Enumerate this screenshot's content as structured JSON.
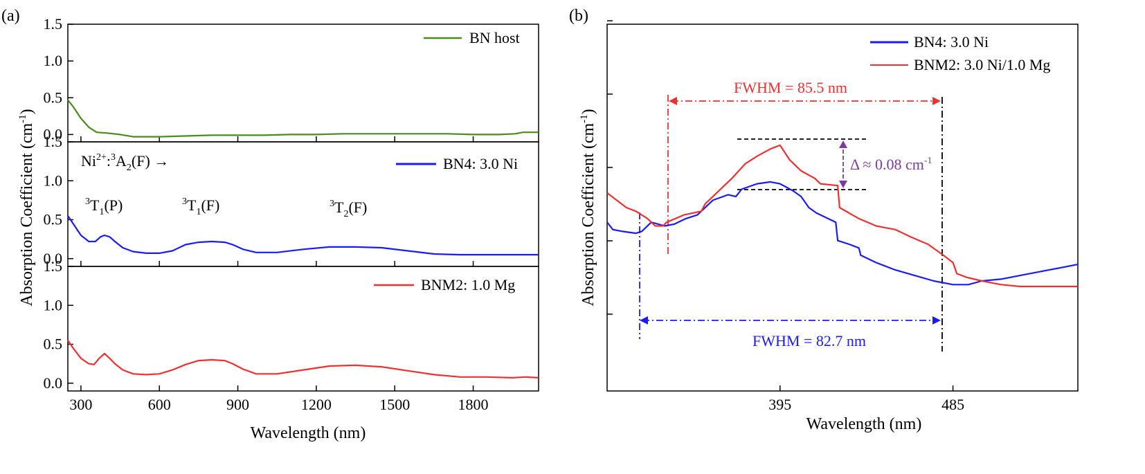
{
  "panels": {
    "a_label": "(a)",
    "b_label": "(b)"
  },
  "chart_data": [
    {
      "type": "line",
      "panel": "(a) top",
      "xlabel": "",
      "ylabel": "",
      "xlim": [
        250,
        2050
      ],
      "ylim": [
        -0.1,
        1.5
      ],
      "yticks": [
        0.0,
        0.5,
        1.0,
        1.5
      ],
      "ytick_labels": [
        "0.0",
        "0.5",
        "1.0",
        "1.5"
      ],
      "legend_position": "top-right",
      "series": [
        {
          "name": "BN host",
          "color": "#4a8c1c",
          "points": [
            [
              250,
              0.47
            ],
            [
              270,
              0.38
            ],
            [
              300,
              0.22
            ],
            [
              330,
              0.1
            ],
            [
              360,
              0.03
            ],
            [
              400,
              0.02
            ],
            [
              450,
              0.0
            ],
            [
              500,
              -0.03
            ],
            [
              550,
              -0.03
            ],
            [
              600,
              -0.03
            ],
            [
              700,
              -0.02
            ],
            [
              800,
              -0.01
            ],
            [
              900,
              -0.01
            ],
            [
              1000,
              -0.01
            ],
            [
              1100,
              0.0
            ],
            [
              1200,
              0.0
            ],
            [
              1300,
              0.01
            ],
            [
              1400,
              0.01
            ],
            [
              1500,
              0.01
            ],
            [
              1600,
              0.01
            ],
            [
              1700,
              0.01
            ],
            [
              1800,
              0.0
            ],
            [
              1900,
              0.0
            ],
            [
              1960,
              0.01
            ],
            [
              1990,
              0.03
            ],
            [
              2050,
              0.03
            ]
          ]
        }
      ]
    },
    {
      "type": "line",
      "panel": "(a) middle",
      "xlabel": "",
      "ylabel": "",
      "xlim": [
        250,
        2050
      ],
      "ylim": [
        -0.1,
        1.5
      ],
      "yticks": [
        0.0,
        0.5,
        1.0,
        1.5
      ],
      "ytick_labels": [
        "0.0",
        "0.5",
        "1.0",
        "1.5"
      ],
      "legend_position": "top-right",
      "series": [
        {
          "name": "BN4: 3.0 Ni",
          "color": "#1a1aff",
          "points": [
            [
              250,
              0.55
            ],
            [
              270,
              0.45
            ],
            [
              300,
              0.3
            ],
            [
              330,
              0.22
            ],
            [
              355,
              0.22
            ],
            [
              375,
              0.28
            ],
            [
              390,
              0.3
            ],
            [
              410,
              0.28
            ],
            [
              430,
              0.22
            ],
            [
              460,
              0.14
            ],
            [
              500,
              0.09
            ],
            [
              550,
              0.07
            ],
            [
              600,
              0.07
            ],
            [
              650,
              0.1
            ],
            [
              700,
              0.18
            ],
            [
              750,
              0.21
            ],
            [
              800,
              0.22
            ],
            [
              850,
              0.21
            ],
            [
              880,
              0.18
            ],
            [
              920,
              0.12
            ],
            [
              970,
              0.08
            ],
            [
              1050,
              0.08
            ],
            [
              1150,
              0.12
            ],
            [
              1250,
              0.15
            ],
            [
              1350,
              0.15
            ],
            [
              1450,
              0.14
            ],
            [
              1550,
              0.1
            ],
            [
              1650,
              0.06
            ],
            [
              1750,
              0.05
            ],
            [
              1850,
              0.05
            ],
            [
              1950,
              0.05
            ],
            [
              2050,
              0.05
            ]
          ]
        }
      ],
      "annotations": [
        {
          "text": "Ni2+:3A2(F) →",
          "x": 290,
          "y": 1.25
        },
        {
          "text": "3T1(P)",
          "x": 325,
          "y": 0.63
        },
        {
          "text": "3T1(F)",
          "x": 680,
          "y": 0.63
        },
        {
          "text": "3T2(F)",
          "x": 1250,
          "y": 0.6
        }
      ]
    },
    {
      "type": "line",
      "panel": "(a) bottom",
      "xlabel": "Wavelength (nm)",
      "ylabel": "Absorption Coefficient (cm-1)",
      "xlim": [
        250,
        2050
      ],
      "ylim": [
        -0.1,
        1.5
      ],
      "xticks": [
        300,
        600,
        900,
        1200,
        1500,
        1800
      ],
      "xtick_labels": [
        "300",
        "600",
        "900",
        "1200",
        "1500",
        "1800"
      ],
      "yticks": [
        0.0,
        0.5,
        1.0,
        1.5
      ],
      "ytick_labels": [
        "0.0",
        "0.5",
        "1.0",
        "1.5"
      ],
      "legend_position": "top-right",
      "series": [
        {
          "name": "BNM2: 1.0 Mg",
          "color": "#f03030",
          "points": [
            [
              250,
              0.55
            ],
            [
              270,
              0.45
            ],
            [
              300,
              0.32
            ],
            [
              330,
              0.25
            ],
            [
              350,
              0.24
            ],
            [
              370,
              0.32
            ],
            [
              390,
              0.38
            ],
            [
              410,
              0.32
            ],
            [
              430,
              0.25
            ],
            [
              460,
              0.17
            ],
            [
              500,
              0.12
            ],
            [
              550,
              0.11
            ],
            [
              600,
              0.12
            ],
            [
              650,
              0.17
            ],
            [
              700,
              0.24
            ],
            [
              750,
              0.29
            ],
            [
              800,
              0.3
            ],
            [
              850,
              0.29
            ],
            [
              880,
              0.25
            ],
            [
              920,
              0.18
            ],
            [
              970,
              0.12
            ],
            [
              1050,
              0.12
            ],
            [
              1150,
              0.17
            ],
            [
              1250,
              0.22
            ],
            [
              1350,
              0.23
            ],
            [
              1450,
              0.21
            ],
            [
              1550,
              0.16
            ],
            [
              1650,
              0.11
            ],
            [
              1750,
              0.08
            ],
            [
              1850,
              0.08
            ],
            [
              1950,
              0.07
            ],
            [
              2000,
              0.08
            ],
            [
              2050,
              0.07
            ]
          ]
        }
      ]
    },
    {
      "type": "line",
      "panel": "(b)",
      "xlabel": "Wavelength (nm)",
      "ylabel": "Absorption Coefficient (cm-1)",
      "xlim": [
        305,
        550
      ],
      "ylim": [
        0.0,
        1.0
      ],
      "xticks": [
        395,
        485
      ],
      "xtick_labels": [
        "395",
        "485"
      ],
      "yticks": [
        0.2,
        0.4,
        0.6,
        0.8,
        1.0
      ],
      "ytick_labels": [
        "",
        "",
        "",
        "",
        ""
      ],
      "legend_position": "top-right",
      "series": [
        {
          "name": "BN4: 3.0 Ni",
          "color": "#1a1aff",
          "points": [
            [
              305,
              0.46
            ],
            [
              308,
              0.44
            ],
            [
              313,
              0.435
            ],
            [
              320,
              0.43
            ],
            [
              323,
              0.435
            ],
            [
              328,
              0.46
            ],
            [
              335,
              0.45
            ],
            [
              340,
              0.455
            ],
            [
              346,
              0.47
            ],
            [
              352,
              0.48
            ],
            [
              360,
              0.52
            ],
            [
              368,
              0.535
            ],
            [
              372,
              0.53
            ],
            [
              375,
              0.55
            ],
            [
              383,
              0.565
            ],
            [
              390,
              0.57
            ],
            [
              395,
              0.565
            ],
            [
              402,
              0.545
            ],
            [
              406,
              0.53
            ],
            [
              410,
              0.5
            ],
            [
              414,
              0.485
            ],
            [
              420,
              0.47
            ],
            [
              424,
              0.46
            ],
            [
              425,
              0.41
            ],
            [
              431,
              0.4
            ],
            [
              436,
              0.39
            ],
            [
              437,
              0.37
            ],
            [
              445,
              0.35
            ],
            [
              455,
              0.33
            ],
            [
              465,
              0.315
            ],
            [
              475,
              0.3
            ],
            [
              485,
              0.29
            ],
            [
              493,
              0.29
            ],
            [
              500,
              0.3
            ],
            [
              510,
              0.305
            ],
            [
              520,
              0.315
            ],
            [
              535,
              0.33
            ],
            [
              550,
              0.345
            ]
          ]
        },
        {
          "name": "BNM2: 3.0 Ni/1.0 Mg",
          "color": "#f03030",
          "points": [
            [
              305,
              0.54
            ],
            [
              310,
              0.52
            ],
            [
              315,
              0.5
            ],
            [
              320,
              0.49
            ],
            [
              326,
              0.47
            ],
            [
              330,
              0.45
            ],
            [
              334,
              0.45
            ],
            [
              336,
              0.46
            ],
            [
              345,
              0.48
            ],
            [
              354,
              0.49
            ],
            [
              356,
              0.51
            ],
            [
              362,
              0.54
            ],
            [
              370,
              0.58
            ],
            [
              377,
              0.62
            ],
            [
              383,
              0.64
            ],
            [
              390,
              0.66
            ],
            [
              395,
              0.67
            ],
            [
              400,
              0.63
            ],
            [
              406,
              0.6
            ],
            [
              413,
              0.58
            ],
            [
              416,
              0.565
            ],
            [
              425,
              0.56
            ],
            [
              426,
              0.5
            ],
            [
              436,
              0.47
            ],
            [
              445,
              0.45
            ],
            [
              455,
              0.44
            ],
            [
              463,
              0.42
            ],
            [
              472,
              0.4
            ],
            [
              480,
              0.37
            ],
            [
              485,
              0.35
            ],
            [
              487,
              0.32
            ],
            [
              492,
              0.31
            ],
            [
              500,
              0.3
            ],
            [
              510,
              0.29
            ],
            [
              520,
              0.285
            ],
            [
              535,
              0.285
            ],
            [
              550,
              0.285
            ]
          ]
        }
      ],
      "annotations": [
        {
          "text": "FWHM = 85.5 nm",
          "color": "#f03030"
        },
        {
          "text": "FWHM = 82.7 nm",
          "color": "#1a1aff"
        },
        {
          "text": "Δ ≈ 0.08 cm-1",
          "color": "#7a3aa0"
        }
      ],
      "markers": {
        "red_fwhm": [
          334,
          485
        ],
        "blue_fwhm": [
          322,
          485
        ],
        "delta_levels": [
          0.57,
          0.67
        ]
      }
    }
  ]
}
